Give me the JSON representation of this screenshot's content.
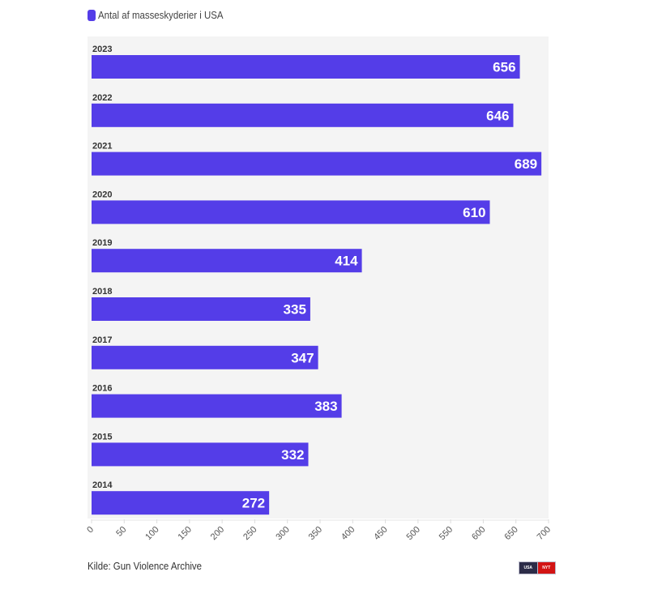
{
  "legend": {
    "label": "Antal af masseskyderier i USA",
    "color": "#543de8"
  },
  "source": "Kilde: Gun Violence Archive",
  "badge": {
    "left": "USA",
    "right": "NYT"
  },
  "chart_data": {
    "type": "bar",
    "orientation": "horizontal",
    "title": "",
    "series_name": "Antal af masseskyderier i USA",
    "categories": [
      "2023",
      "2022",
      "2021",
      "2020",
      "2019",
      "2018",
      "2017",
      "2016",
      "2015",
      "2014"
    ],
    "values": [
      656,
      646,
      689,
      610,
      414,
      335,
      347,
      383,
      332,
      272
    ],
    "xlabel": "",
    "ylabel": "",
    "xlim": [
      0,
      700
    ],
    "xticks": [
      0,
      50,
      100,
      150,
      200,
      250,
      300,
      350,
      400,
      450,
      500,
      550,
      600,
      650,
      700
    ],
    "bar_color": "#543de8",
    "data_labels": true,
    "legend_position": "top-left",
    "grid": false
  }
}
